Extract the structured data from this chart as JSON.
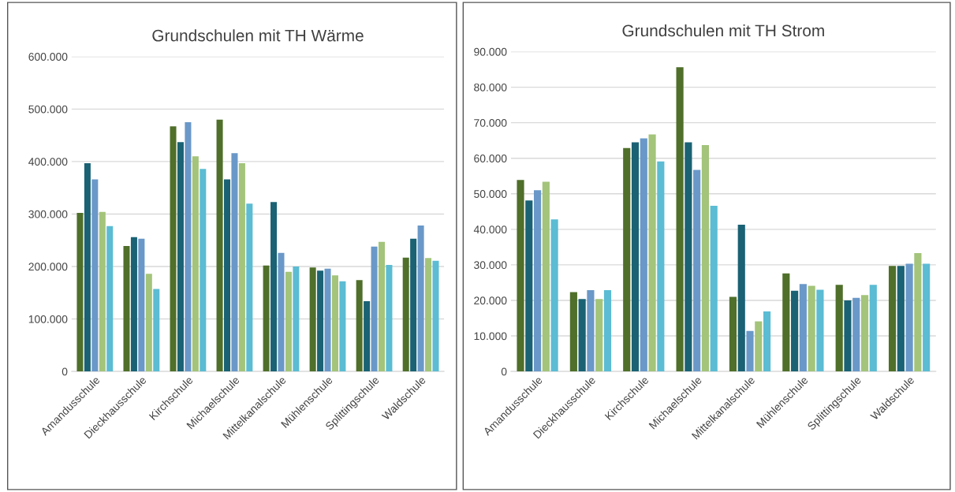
{
  "chart_data": [
    {
      "type": "bar",
      "title": "Grundschulen mit TH Wärme",
      "categories": [
        "Amandusschule",
        "Dieckhausschule",
        "Kirchschule",
        "Michaelschule",
        "Mittelkanalschule",
        "Mühlenschule",
        "Splittingschule",
        "Waldschule"
      ],
      "series": [
        {
          "color": "#4f6f2a",
          "values": [
            302000,
            239000,
            467000,
            480000,
            202000,
            198000,
            174000,
            217000
          ]
        },
        {
          "color": "#1a6274",
          "values": [
            397000,
            256000,
            437000,
            366000,
            323000,
            192000,
            134000,
            253000
          ]
        },
        {
          "color": "#6a98c8",
          "values": [
            366000,
            253000,
            475000,
            416000,
            226000,
            196000,
            238000,
            278000
          ]
        },
        {
          "color": "#a3c47a",
          "values": [
            304000,
            186000,
            410000,
            397000,
            190000,
            183000,
            247000,
            216000
          ]
        },
        {
          "color": "#5bbcd3",
          "values": [
            277000,
            157000,
            386000,
            320000,
            200000,
            172000,
            203000,
            211000
          ]
        }
      ],
      "ylim": [
        0,
        600000
      ],
      "yticks": [
        0,
        {
          "value": 100000,
          "label": "100.000"
        },
        {
          "value": 200000,
          "label": "200.000"
        },
        {
          "value": 300000,
          "label": "300.000"
        },
        {
          "value": 400000,
          "label": "400.000"
        },
        {
          "value": 500000,
          "label": "500.000"
        },
        {
          "value": 600000,
          "label": "600.000"
        }
      ],
      "grid": "y",
      "legend": false
    },
    {
      "type": "bar",
      "title": "Grundschulen mit TH Strom",
      "categories": [
        "Amandusschule",
        "Dieckhausschule",
        "Kirchschule",
        "Michaelschule",
        "Mittelkanalschule",
        "Mühlenschule",
        "Splittingschule",
        "Waldschule"
      ],
      "series": [
        {
          "color": "#4f6f2a",
          "values": [
            53900,
            22300,
            62900,
            85600,
            21000,
            27600,
            24400,
            29700
          ]
        },
        {
          "color": "#1a6274",
          "values": [
            48100,
            20400,
            64500,
            64500,
            41300,
            22700,
            20000,
            29700
          ]
        },
        {
          "color": "#6a98c8",
          "values": [
            51000,
            22900,
            65600,
            56700,
            11400,
            24600,
            20700,
            30300
          ]
        },
        {
          "color": "#a3c47a",
          "values": [
            53400,
            20400,
            66700,
            63700,
            14100,
            24100,
            21500,
            33300
          ]
        },
        {
          "color": "#5bbcd3",
          "values": [
            42800,
            22900,
            59100,
            46600,
            16900,
            23000,
            24400,
            30300
          ]
        }
      ],
      "ylim": [
        0,
        90000
      ],
      "yticks": [
        0,
        {
          "value": 10000,
          "label": "10.000"
        },
        {
          "value": 20000,
          "label": "20.000"
        },
        {
          "value": 30000,
          "label": "30.000"
        },
        {
          "value": 40000,
          "label": "40.000"
        },
        {
          "value": 50000,
          "label": "50.000"
        },
        {
          "value": 60000,
          "label": "60.000"
        },
        {
          "value": 70000,
          "label": "70.000"
        },
        {
          "value": 80000,
          "label": "80.000"
        },
        {
          "value": 90000,
          "label": "90.000"
        }
      ],
      "grid": "y",
      "legend": false
    }
  ]
}
